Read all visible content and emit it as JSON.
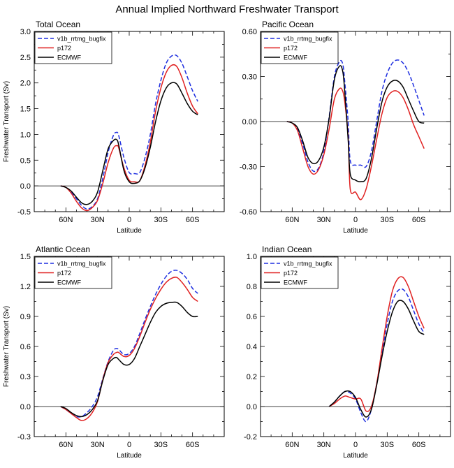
{
  "figure_title": "Annual Implied Northward Freshwater Transport",
  "colors": {
    "v1b": "#1f2fe0",
    "p172": "#e02020",
    "ecmwf": "#000000",
    "axis": "#000000",
    "zero_line": "#000000"
  },
  "chart_data": [
    {
      "type": "line",
      "title": "Total Ocean",
      "xlabel": "Latitude",
      "ylabel": "Freshwater Transport (Sv)",
      "xlim": [
        -90,
        90
      ],
      "ylim": [
        -0.5,
        3.0
      ],
      "x_tick_values": [
        -60,
        -30,
        0,
        30,
        60
      ],
      "x_tick_labels": [
        "60N",
        "30N",
        "0",
        "30S",
        "60S"
      ],
      "y_tick_values": [
        -0.5,
        0.0,
        0.5,
        1.0,
        1.5,
        2.0,
        2.5,
        3.0
      ],
      "y_tick_labels": [
        "-0.5",
        "0.0",
        "0.5",
        "1.0",
        "1.5",
        "2.0",
        "2.5",
        "3.0"
      ],
      "legend_position": "top-left",
      "series": [
        {
          "name": "v1b_rrtmg_bugfix",
          "key": "v1b",
          "dash": "dashed",
          "x": [
            -65,
            -60,
            -55,
            -50,
            -45,
            -40,
            -35,
            -30,
            -25,
            -20,
            -15,
            -12,
            -10,
            -5,
            0,
            5,
            10,
            15,
            20,
            25,
            30,
            35,
            40,
            45,
            50,
            55,
            60,
            65
          ],
          "y": [
            0,
            -0.03,
            -0.12,
            -0.25,
            -0.38,
            -0.45,
            -0.4,
            -0.25,
            0.15,
            0.65,
            0.98,
            1.04,
            0.98,
            0.55,
            0.26,
            0.24,
            0.26,
            0.55,
            1.0,
            1.6,
            2.05,
            2.38,
            2.52,
            2.53,
            2.38,
            2.12,
            1.85,
            1.64
          ]
        },
        {
          "name": "p172",
          "key": "p172",
          "dash": "solid",
          "x": [
            -65,
            -60,
            -55,
            -50,
            -45,
            -40,
            -35,
            -30,
            -25,
            -20,
            -15,
            -12,
            -10,
            -5,
            0,
            5,
            10,
            15,
            20,
            25,
            30,
            35,
            40,
            45,
            50,
            55,
            60,
            65
          ],
          "y": [
            0,
            -0.03,
            -0.14,
            -0.3,
            -0.43,
            -0.48,
            -0.42,
            -0.28,
            0.05,
            0.45,
            0.73,
            0.78,
            0.74,
            0.35,
            0.11,
            0.08,
            0.1,
            0.4,
            0.85,
            1.45,
            1.9,
            2.2,
            2.34,
            2.32,
            2.1,
            1.8,
            1.55,
            1.4
          ]
        },
        {
          "name": "ECMWF",
          "key": "ecmwf",
          "dash": "solid",
          "x": [
            -65,
            -60,
            -55,
            -50,
            -45,
            -40,
            -35,
            -30,
            -25,
            -20,
            -15,
            -12,
            -10,
            -5,
            0,
            5,
            10,
            15,
            20,
            25,
            30,
            35,
            40,
            45,
            50,
            55,
            60,
            65
          ],
          "y": [
            0,
            -0.03,
            -0.1,
            -0.22,
            -0.33,
            -0.36,
            -0.3,
            -0.12,
            0.3,
            0.72,
            0.88,
            0.9,
            0.8,
            0.3,
            0.08,
            0.05,
            0.1,
            0.35,
            0.75,
            1.25,
            1.65,
            1.9,
            2.0,
            1.98,
            1.8,
            1.6,
            1.45,
            1.38
          ]
        }
      ]
    },
    {
      "type": "line",
      "title": "Pacific Ocean",
      "xlabel": "Latitude",
      "ylabel": "",
      "xlim": [
        -90,
        90
      ],
      "ylim": [
        -0.6,
        0.6
      ],
      "x_tick_values": [
        -60,
        -30,
        0,
        30,
        60
      ],
      "x_tick_labels": [
        "60N",
        "30N",
        "0",
        "30S",
        "60S"
      ],
      "y_tick_values": [
        -0.6,
        -0.3,
        0.0,
        0.3,
        0.6
      ],
      "y_tick_labels": [
        "-0.60",
        "-0.30",
        "0.00",
        "0.30",
        "0.60"
      ],
      "legend_position": "top-left",
      "series": [
        {
          "name": "v1b_rrtmg_bugfix",
          "key": "v1b",
          "dash": "dashed",
          "x": [
            -65,
            -60,
            -55,
            -50,
            -45,
            -40,
            -35,
            -30,
            -25,
            -20,
            -15,
            -12,
            -10,
            -7,
            -5,
            0,
            5,
            10,
            15,
            20,
            25,
            30,
            35,
            40,
            45,
            50,
            55,
            60,
            65
          ],
          "y": [
            0,
            -0.01,
            -0.05,
            -0.15,
            -0.27,
            -0.33,
            -0.31,
            -0.2,
            0.03,
            0.3,
            0.4,
            0.38,
            0.25,
            0.0,
            -0.26,
            -0.29,
            -0.29,
            -0.3,
            -0.2,
            0.0,
            0.2,
            0.32,
            0.39,
            0.41,
            0.39,
            0.33,
            0.24,
            0.14,
            0.04
          ]
        },
        {
          "name": "p172",
          "key": "p172",
          "dash": "solid",
          "x": [
            -65,
            -60,
            -55,
            -50,
            -45,
            -40,
            -35,
            -30,
            -25,
            -20,
            -15,
            -12,
            -10,
            -7,
            -5,
            0,
            5,
            10,
            15,
            20,
            25,
            30,
            35,
            40,
            45,
            50,
            55,
            60,
            65
          ],
          "y": [
            0,
            -0.01,
            -0.06,
            -0.18,
            -0.3,
            -0.35,
            -0.32,
            -0.22,
            -0.05,
            0.15,
            0.22,
            0.2,
            0.12,
            -0.1,
            -0.45,
            -0.47,
            -0.52,
            -0.45,
            -0.3,
            -0.12,
            0.05,
            0.16,
            0.2,
            0.2,
            0.16,
            0.08,
            -0.02,
            -0.1,
            -0.18
          ]
        },
        {
          "name": "ECMWF",
          "key": "ecmwf",
          "dash": "solid",
          "x": [
            -65,
            -60,
            -55,
            -50,
            -45,
            -40,
            -35,
            -30,
            -25,
            -20,
            -15,
            -12,
            -10,
            -7,
            -5,
            0,
            5,
            10,
            15,
            20,
            25,
            30,
            35,
            40,
            45,
            50,
            55,
            60,
            65
          ],
          "y": [
            0,
            -0.01,
            -0.04,
            -0.13,
            -0.24,
            -0.28,
            -0.26,
            -0.17,
            0.02,
            0.28,
            0.37,
            0.33,
            0.18,
            -0.12,
            -0.35,
            -0.39,
            -0.4,
            -0.38,
            -0.25,
            -0.05,
            0.13,
            0.23,
            0.27,
            0.27,
            0.23,
            0.15,
            0.07,
            0.0,
            -0.01
          ]
        }
      ]
    },
    {
      "type": "line",
      "title": "Atlantic Ocean",
      "xlabel": "Latitude",
      "ylabel": "Freshwater Transport (Sv)",
      "xlim": [
        -90,
        90
      ],
      "ylim": [
        -0.3,
        1.5
      ],
      "x_tick_values": [
        -60,
        -30,
        0,
        30,
        60
      ],
      "x_tick_labels": [
        "60N",
        "30N",
        "0",
        "30S",
        "60S"
      ],
      "y_tick_values": [
        -0.3,
        0.0,
        0.3,
        0.6,
        0.9,
        1.2,
        1.5
      ],
      "y_tick_labels": [
        "-0.3",
        "0.0",
        "0.3",
        "0.6",
        "0.9",
        "1.2",
        "1.5"
      ],
      "legend_position": "top-left",
      "series": [
        {
          "name": "v1b_rrtmg_bugfix",
          "key": "v1b",
          "dash": "dashed",
          "x": [
            -65,
            -60,
            -55,
            -50,
            -45,
            -40,
            -35,
            -30,
            -25,
            -20,
            -15,
            -12,
            -10,
            -5,
            0,
            5,
            10,
            15,
            20,
            25,
            30,
            35,
            40,
            45,
            50,
            55,
            60,
            65
          ],
          "y": [
            0,
            -0.03,
            -0.07,
            -0.1,
            -0.1,
            -0.06,
            0.0,
            0.1,
            0.28,
            0.45,
            0.56,
            0.58,
            0.57,
            0.52,
            0.53,
            0.6,
            0.73,
            0.87,
            1.0,
            1.12,
            1.22,
            1.3,
            1.35,
            1.36,
            1.33,
            1.27,
            1.18,
            1.13
          ]
        },
        {
          "name": "p172",
          "key": "p172",
          "dash": "solid",
          "x": [
            -65,
            -60,
            -55,
            -50,
            -45,
            -40,
            -35,
            -30,
            -25,
            -20,
            -15,
            -12,
            -10,
            -5,
            0,
            5,
            10,
            15,
            20,
            25,
            30,
            35,
            40,
            45,
            50,
            55,
            60,
            65
          ],
          "y": [
            0,
            -0.03,
            -0.07,
            -0.11,
            -0.14,
            -0.12,
            -0.06,
            0.05,
            0.27,
            0.44,
            0.52,
            0.54,
            0.54,
            0.5,
            0.51,
            0.58,
            0.7,
            0.84,
            0.97,
            1.08,
            1.17,
            1.24,
            1.28,
            1.29,
            1.24,
            1.17,
            1.09,
            1.05
          ]
        },
        {
          "name": "ECMWF",
          "key": "ecmwf",
          "dash": "solid",
          "x": [
            -65,
            -60,
            -55,
            -50,
            -45,
            -40,
            -35,
            -30,
            -25,
            -20,
            -15,
            -12,
            -10,
            -5,
            0,
            5,
            10,
            15,
            20,
            25,
            30,
            35,
            40,
            45,
            50,
            55,
            60,
            65
          ],
          "y": [
            0,
            -0.02,
            -0.06,
            -0.09,
            -0.1,
            -0.08,
            -0.03,
            0.06,
            0.26,
            0.42,
            0.48,
            0.49,
            0.47,
            0.42,
            0.42,
            0.48,
            0.6,
            0.72,
            0.84,
            0.94,
            1.0,
            1.03,
            1.04,
            1.04,
            1.0,
            0.94,
            0.9,
            0.9
          ]
        }
      ]
    },
    {
      "type": "line",
      "title": "Indian Ocean",
      "xlabel": "Latitude",
      "ylabel": "",
      "xlim": [
        -90,
        90
      ],
      "ylim": [
        -0.2,
        1.0
      ],
      "x_tick_values": [
        -60,
        -30,
        0,
        30,
        60
      ],
      "x_tick_labels": [
        "60N",
        "30N",
        "0",
        "30S",
        "60S"
      ],
      "y_tick_values": [
        -0.2,
        0.0,
        0.2,
        0.4,
        0.6,
        0.8,
        1.0
      ],
      "y_tick_labels": [
        "-0.2",
        "0.0",
        "0.2",
        "0.4",
        "0.6",
        "0.8",
        "1.0"
      ],
      "legend_position": "top-left",
      "series": [
        {
          "name": "v1b_rrtmg_bugfix",
          "key": "v1b",
          "dash": "dashed",
          "x": [
            -25,
            -20,
            -15,
            -10,
            -5,
            0,
            5,
            10,
            15,
            20,
            25,
            30,
            35,
            40,
            45,
            50,
            55,
            60,
            65
          ],
          "y": [
            0,
            0.03,
            0.07,
            0.1,
            0.09,
            0.05,
            -0.04,
            -0.1,
            -0.02,
            0.15,
            0.35,
            0.55,
            0.7,
            0.77,
            0.78,
            0.73,
            0.64,
            0.55,
            0.49
          ]
        },
        {
          "name": "p172",
          "key": "p172",
          "dash": "solid",
          "x": [
            -25,
            -20,
            -15,
            -10,
            -5,
            0,
            5,
            10,
            15,
            20,
            25,
            30,
            35,
            40,
            45,
            50,
            55,
            60,
            65
          ],
          "y": [
            0,
            0.02,
            0.05,
            0.07,
            0.06,
            0.05,
            0.05,
            -0.03,
            0.0,
            0.15,
            0.38,
            0.6,
            0.77,
            0.85,
            0.86,
            0.8,
            0.7,
            0.6,
            0.52
          ]
        },
        {
          "name": "ECMWF",
          "key": "ecmwf",
          "dash": "solid",
          "x": [
            -25,
            -20,
            -15,
            -10,
            -5,
            0,
            5,
            10,
            15,
            20,
            25,
            30,
            35,
            40,
            45,
            50,
            55,
            60,
            65
          ],
          "y": [
            0,
            0.03,
            0.07,
            0.1,
            0.1,
            0.06,
            -0.02,
            -0.07,
            -0.02,
            0.14,
            0.33,
            0.5,
            0.63,
            0.7,
            0.7,
            0.65,
            0.57,
            0.5,
            0.48
          ]
        }
      ]
    }
  ]
}
